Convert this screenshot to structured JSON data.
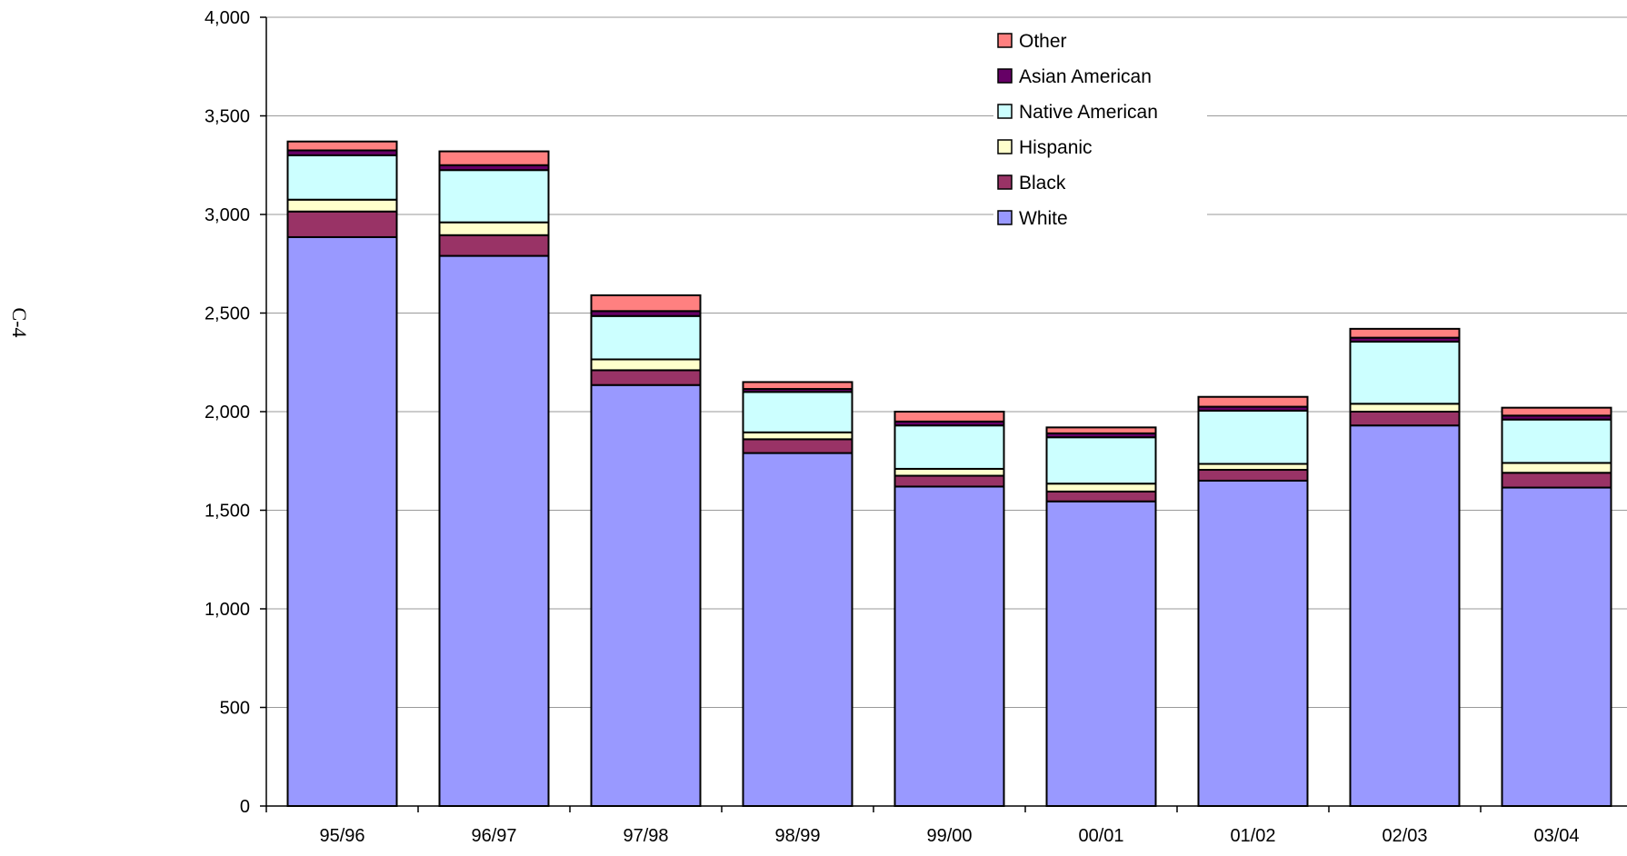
{
  "page": {
    "page_label": "C-4"
  },
  "chart_data": {
    "type": "bar",
    "stacked": true,
    "title": "",
    "xlabel": "",
    "ylabel": "",
    "categories": [
      "95/96",
      "96/97",
      "97/98",
      "98/99",
      "99/00",
      "00/01",
      "01/02",
      "02/03",
      "03/04"
    ],
    "ylim": [
      0,
      4000
    ],
    "yticks": [
      0,
      500,
      1000,
      1500,
      2000,
      2500,
      3000,
      3500,
      4000
    ],
    "ytick_labels": [
      "0",
      "500",
      "1,000",
      "1,500",
      "2,000",
      "2,500",
      "3,000",
      "3,500",
      "4,000"
    ],
    "grid": true,
    "legend_position": "top-right",
    "series": [
      {
        "name": "White",
        "color": "#9999ff",
        "values": [
          2885,
          2790,
          2135,
          1790,
          1620,
          1545,
          1650,
          1930,
          1615
        ]
      },
      {
        "name": "Black",
        "color": "#993366",
        "values": [
          130,
          105,
          75,
          70,
          55,
          50,
          55,
          70,
          75
        ]
      },
      {
        "name": "Hispanic",
        "color": "#ffffcc",
        "values": [
          60,
          65,
          55,
          35,
          35,
          40,
          30,
          40,
          50
        ]
      },
      {
        "name": "Native American",
        "color": "#ccffff",
        "values": [
          225,
          265,
          220,
          205,
          220,
          235,
          270,
          315,
          220
        ]
      },
      {
        "name": "Asian American",
        "color": "#660066",
        "values": [
          25,
          25,
          25,
          15,
          20,
          20,
          20,
          20,
          20
        ]
      },
      {
        "name": "Other",
        "color": "#ff8080",
        "values": [
          45,
          70,
          80,
          35,
          50,
          30,
          50,
          45,
          40
        ]
      }
    ]
  }
}
